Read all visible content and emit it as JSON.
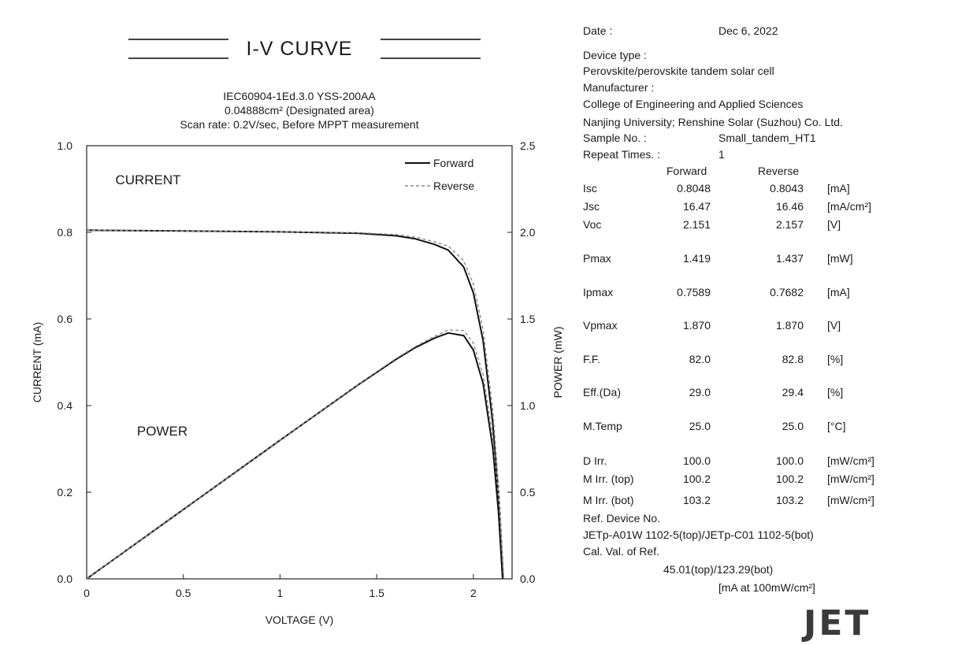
{
  "header": {
    "title": "I-V  CURVE",
    "line1": "IEC60904-1Ed.3.0  YSS-200AA",
    "line2": "0.04888cm² (Designated area)",
    "line3": "Scan rate: 0.2V/sec, Before MPPT measurement"
  },
  "chart_data": {
    "type": "line",
    "xlabel": "VOLTAGE (V)",
    "ylabel_left": "CURRENT (mA)",
    "ylabel_right": "POWER (mW)",
    "xlim": [
      0,
      2.2
    ],
    "ylim_left": [
      0,
      1.0
    ],
    "ylim_right": [
      0,
      2.5
    ],
    "x_ticks": [
      "0",
      "0.5",
      "1",
      "1.5",
      "2"
    ],
    "y_left_ticks": [
      "0.0",
      "0.2",
      "0.4",
      "0.6",
      "0.8",
      "1.0"
    ],
    "y_right_ticks": [
      "0.0",
      "0.5",
      "1.0",
      "1.5",
      "2.0",
      "2.5"
    ],
    "annotations": [
      "CURRENT",
      "POWER"
    ],
    "legend": {
      "placement": "top-right",
      "entries": [
        "Forward",
        "Reverse"
      ]
    },
    "grid": false,
    "series": [
      {
        "name": "Forward",
        "quantity": "current",
        "axis": "left",
        "style": "solid",
        "x": [
          0,
          0.5,
          1.0,
          1.4,
          1.6,
          1.7,
          1.8,
          1.87,
          1.95,
          2.0,
          2.05,
          2.1,
          2.13,
          2.151
        ],
        "y": [
          0.805,
          0.803,
          0.801,
          0.798,
          0.792,
          0.785,
          0.772,
          0.7589,
          0.72,
          0.66,
          0.55,
          0.36,
          0.18,
          0
        ]
      },
      {
        "name": "Reverse",
        "quantity": "current",
        "axis": "left",
        "style": "dashed",
        "x": [
          0,
          0.5,
          1.0,
          1.4,
          1.6,
          1.7,
          1.8,
          1.87,
          1.95,
          2.0,
          2.05,
          2.1,
          2.135,
          2.157
        ],
        "y": [
          0.805,
          0.803,
          0.801,
          0.799,
          0.795,
          0.789,
          0.778,
          0.7682,
          0.735,
          0.68,
          0.575,
          0.39,
          0.19,
          0
        ]
      },
      {
        "name": "Forward",
        "quantity": "power",
        "axis": "right",
        "style": "solid",
        "x": [
          0,
          0.5,
          1.0,
          1.4,
          1.6,
          1.7,
          1.8,
          1.87,
          1.95,
          2.0,
          2.05,
          2.1,
          2.13,
          2.151
        ],
        "y": [
          0,
          0.4,
          0.8,
          1.117,
          1.267,
          1.335,
          1.39,
          1.419,
          1.404,
          1.32,
          1.128,
          0.756,
          0.383,
          0
        ]
      },
      {
        "name": "Reverse",
        "quantity": "power",
        "axis": "right",
        "style": "dashed",
        "x": [
          0,
          0.5,
          1.0,
          1.4,
          1.6,
          1.7,
          1.8,
          1.87,
          1.95,
          2.0,
          2.05,
          2.1,
          2.135,
          2.157
        ],
        "y": [
          0,
          0.4,
          0.8,
          1.119,
          1.272,
          1.341,
          1.4,
          1.437,
          1.433,
          1.36,
          1.179,
          0.819,
          0.406,
          0
        ]
      }
    ]
  },
  "info": {
    "date_label": "Date :",
    "date_value": "Dec 6, 2022",
    "device_type_label": "Device type :",
    "device_type_value": "Perovskite/perovskite tandem solar cell",
    "manufacturer_label": "Manufacturer :",
    "manufacturer_line1": "College of Engineering and Applied Sciences",
    "manufacturer_line2": "Nanjing University; Renshine Solar (Suzhou) Co. Ltd.",
    "sample_label": "Sample No. :",
    "sample_value": "Small_tandem_HT1",
    "repeat_label": "Repeat Times. :",
    "repeat_value": "1",
    "col_forward": "Forward",
    "col_reverse": "Reverse",
    "rows": [
      {
        "label": "Isc",
        "forward": "0.8048",
        "reverse": "0.8043",
        "unit": "[mA]"
      },
      {
        "label": "Jsc",
        "forward": "16.47",
        "reverse": "16.46",
        "unit": "[mA/cm²]"
      },
      {
        "label": "Voc",
        "forward": "2.151",
        "reverse": "2.157",
        "unit": "[V]"
      },
      {
        "label": "Pmax",
        "forward": "1.419",
        "reverse": "1.437",
        "unit": "[mW]"
      },
      {
        "label": "Ipmax",
        "forward": "0.7589",
        "reverse": "0.7682",
        "unit": "[mA]"
      },
      {
        "label": "Vpmax",
        "forward": "1.870",
        "reverse": "1.870",
        "unit": "[V]"
      },
      {
        "label": "F.F.",
        "forward": "82.0",
        "reverse": "82.8",
        "unit": "[%]"
      },
      {
        "label": "Eff.(Da)",
        "forward": "29.0",
        "reverse": "29.4",
        "unit": "[%]"
      },
      {
        "label": "M.Temp",
        "forward": "25.0",
        "reverse": "25.0",
        "unit": "[°C]"
      },
      {
        "label": "D Irr.",
        "forward": "100.0",
        "reverse": "100.0",
        "unit": "[mW/cm²]"
      },
      {
        "label": "M Irr. (top)",
        "forward": "100.2",
        "reverse": "100.2",
        "unit": "[mW/cm²]"
      },
      {
        "label": "M Irr. (bot)",
        "forward": "103.2",
        "reverse": "103.2",
        "unit": "[mW/cm²]"
      }
    ],
    "ref_device_label": "Ref. Device No.",
    "ref_device_value": "JETp-A01W 1102-5(top)/JETp-C01 1102-5(bot)",
    "cal_label": "Cal. Val. of Ref.",
    "cal_value": "45.01(top)/123.29(bot)",
    "cal_unit": "[mA at 100mW/cm²]"
  },
  "logo": "JET"
}
